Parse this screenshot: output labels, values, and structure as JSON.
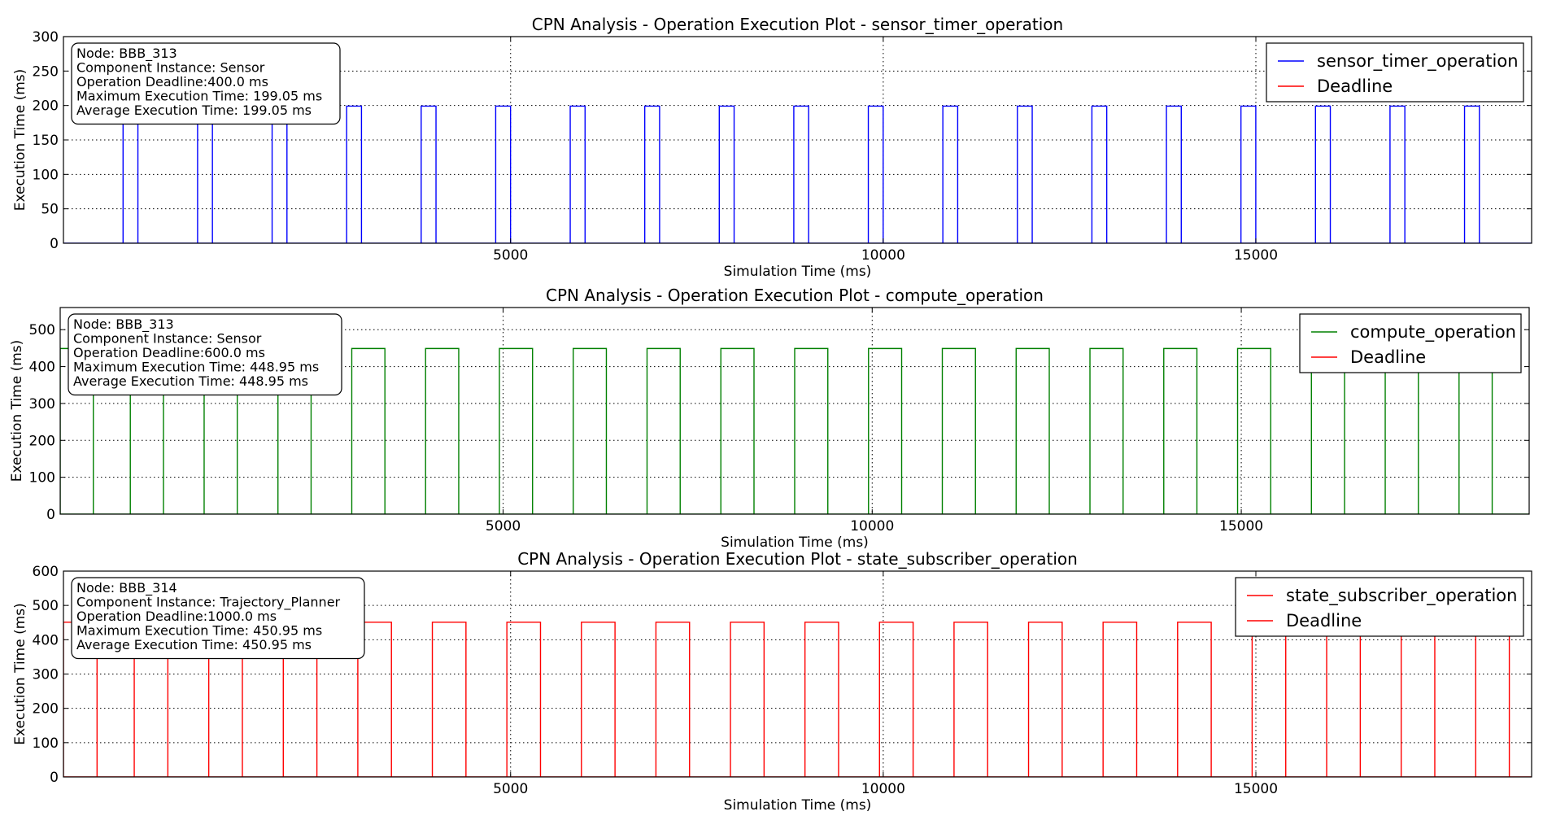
{
  "chart_data": [
    {
      "type": "line",
      "title": "CPN Analysis - Operation Execution Plot - sensor_timer_operation",
      "xlabel": "Simulation Time (ms)",
      "ylabel": "Execution Time (ms)",
      "xlim": [
        -1000,
        18700
      ],
      "ylim": [
        0,
        300
      ],
      "xticks": [
        5000,
        10000,
        15000
      ],
      "yticks": [
        0,
        50,
        100,
        150,
        200,
        250,
        300
      ],
      "grid": true,
      "legend_position": "top-right",
      "series": [
        {
          "name": "sensor_timer_operation",
          "color": "#0000ff",
          "pulse_starts": [
            -200,
            800,
            1800,
            2800,
            3800,
            4800,
            5800,
            6800,
            7800,
            8800,
            9800,
            10800,
            11800,
            12800,
            13800,
            14800,
            15800,
            16800,
            17800
          ],
          "pulse_width": 199.05,
          "value": 199.05
        },
        {
          "name": "Deadline",
          "color": "#ff0000",
          "value": 400.0
        }
      ],
      "annotation": [
        "Node: BBB_313",
        "Component Instance: Sensor",
        "Operation Deadline:400.0 ms",
        "Maximum Execution Time: 199.05 ms",
        "Average Execution Time: 199.05 ms"
      ]
    },
    {
      "type": "line",
      "title": "CPN Analysis - Operation Execution Plot - compute_operation",
      "xlabel": "Simulation Time (ms)",
      "ylabel": "Execution Time (ms)",
      "xlim": [
        -1000,
        18900
      ],
      "ylim": [
        0,
        560
      ],
      "xticks": [
        5000,
        10000,
        15000
      ],
      "yticks": [
        0,
        100,
        200,
        300,
        400,
        500
      ],
      "grid": true,
      "legend_position": "top-right",
      "series": [
        {
          "name": "compute_operation",
          "color": "#008000",
          "pulse_starts": [
            -1000,
            -50,
            950,
            1950,
            2950,
            3950,
            4950,
            5950,
            6950,
            7950,
            8950,
            9950,
            10950,
            11950,
            12950,
            13950,
            14950,
            15950,
            16950,
            17950
          ],
          "pulse_width": 448.95,
          "value": 448.95
        },
        {
          "name": "Deadline",
          "color": "#ff0000",
          "value": 600.0
        }
      ],
      "annotation": [
        "Node: BBB_313",
        "Component Instance: Sensor",
        "Operation Deadline:600.0 ms",
        "Maximum Execution Time: 448.95 ms",
        "Average Execution Time: 448.95 ms"
      ]
    },
    {
      "type": "line",
      "title": "CPN Analysis - Operation Execution Plot - state_subscriber_operation",
      "xlabel": "Simulation Time (ms)",
      "ylabel": "Execution Time (ms)",
      "xlim": [
        -1000,
        18700
      ],
      "ylim": [
        0,
        600
      ],
      "xticks": [
        5000,
        10000,
        15000
      ],
      "yticks": [
        0,
        100,
        200,
        300,
        400,
        500,
        600
      ],
      "grid": true,
      "legend_position": "top-right",
      "series": [
        {
          "name": "state_subscriber_operation",
          "color": "#ff0000",
          "pulse_starts": [
            -1000,
            -50,
            950,
            1950,
            2950,
            3950,
            4950,
            5950,
            6950,
            7950,
            8950,
            9950,
            10950,
            11950,
            12950,
            13950,
            14950,
            15950,
            16950,
            17950
          ],
          "pulse_width": 450.95,
          "value": 450.95
        },
        {
          "name": "Deadline",
          "color": "#ff0000",
          "value": 1000.0
        }
      ],
      "annotation": [
        "Node: BBB_314",
        "Component Instance: Trajectory_Planner",
        "Operation Deadline:1000.0 ms",
        "Maximum Execution Time: 450.95 ms",
        "Average Execution Time: 450.95 ms"
      ]
    }
  ]
}
